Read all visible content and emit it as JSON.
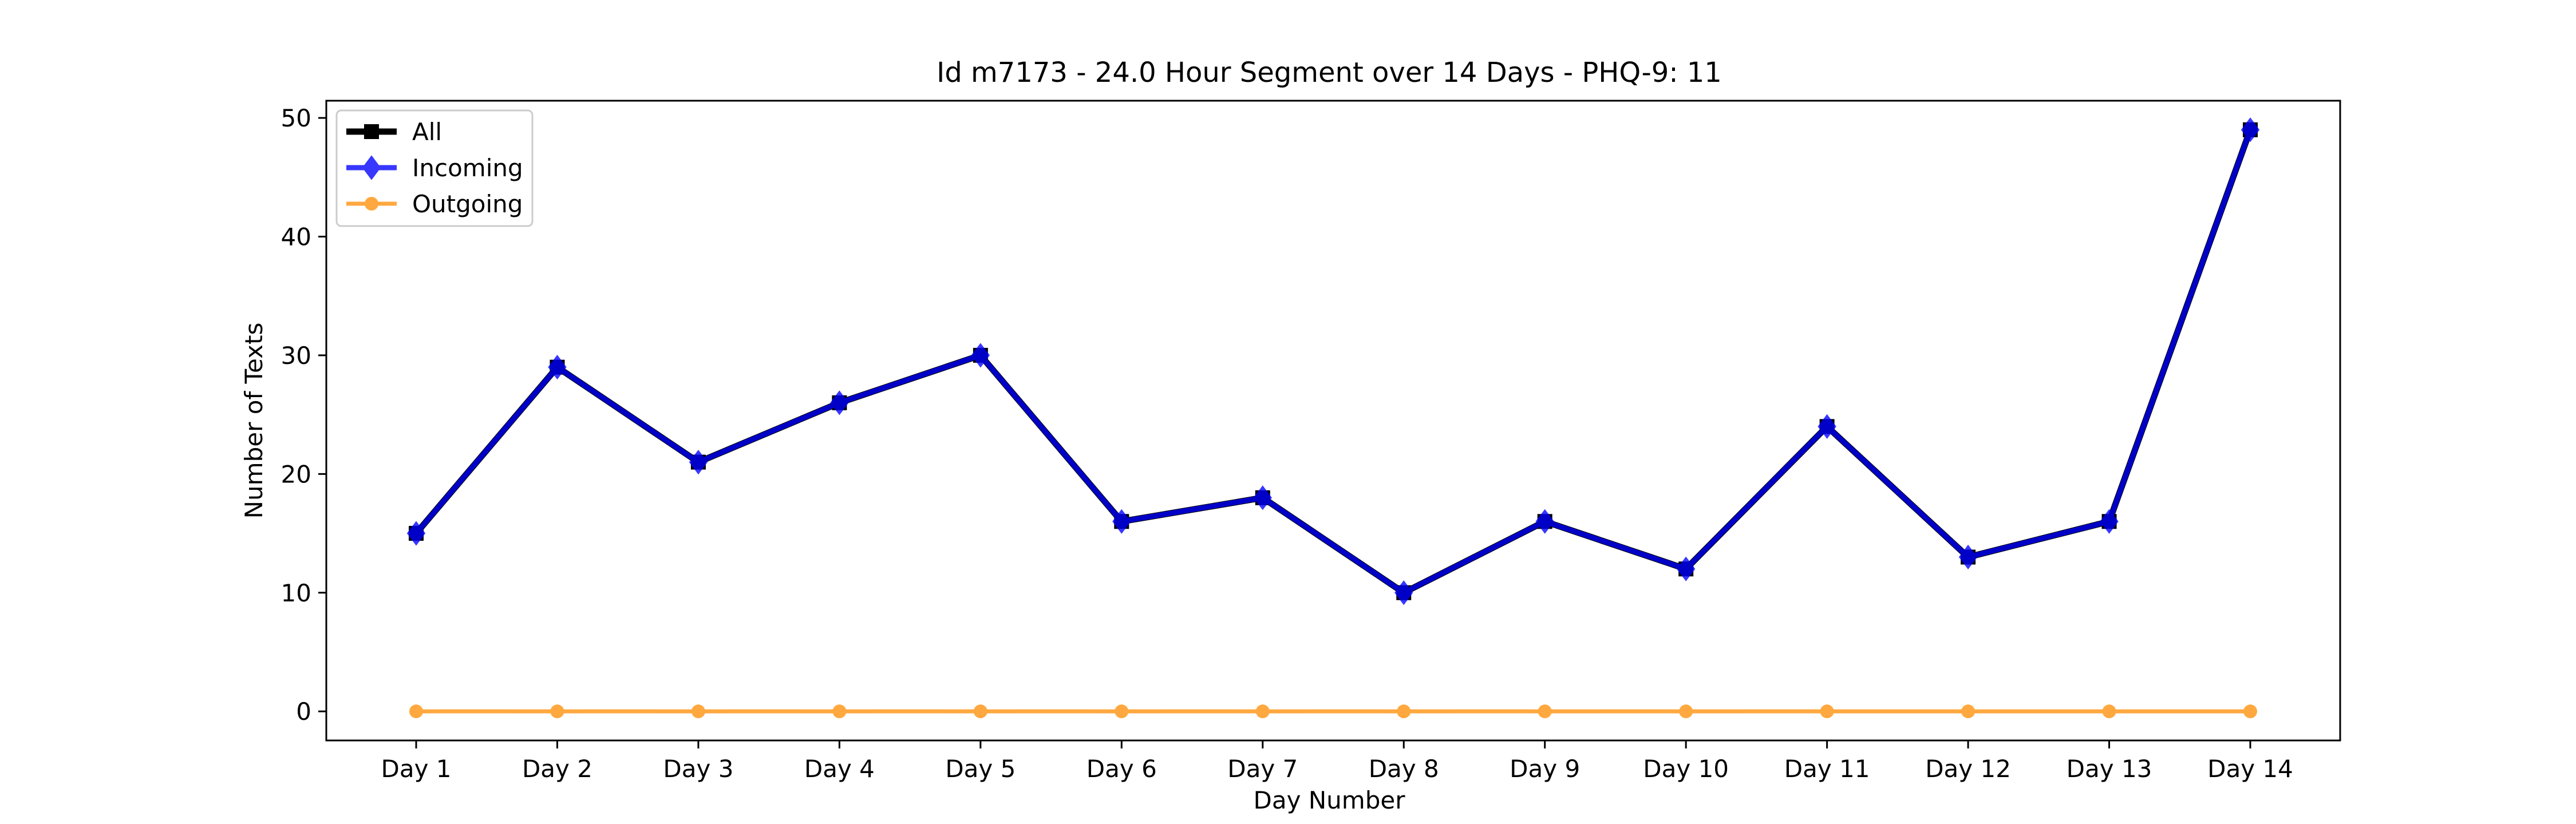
{
  "chart_data": {
    "type": "line",
    "title": "Id m7173 - 24.0 Hour Segment over 14 Days - PHQ-9: 11",
    "xlabel": "Day Number",
    "ylabel": "Number of Texts",
    "categories": [
      "Day 1",
      "Day 2",
      "Day 3",
      "Day 4",
      "Day 5",
      "Day 6",
      "Day 7",
      "Day 8",
      "Day 9",
      "Day 10",
      "Day 11",
      "Day 12",
      "Day 13",
      "Day 14"
    ],
    "ylim": [
      -2.45,
      51.45
    ],
    "yticks": [
      0,
      10,
      20,
      30,
      40,
      50
    ],
    "grid": false,
    "legend_position": "top-left",
    "series": [
      {
        "name": "All",
        "color": "#000000",
        "marker": "square",
        "values": [
          15,
          29,
          21,
          26,
          30,
          16,
          18,
          10,
          16,
          12,
          24,
          13,
          16,
          49
        ]
      },
      {
        "name": "Incoming",
        "color": "#0000ff",
        "marker": "diamond",
        "values": [
          15,
          29,
          21,
          26,
          30,
          16,
          18,
          10,
          16,
          12,
          24,
          13,
          16,
          49
        ]
      },
      {
        "name": "Outgoing",
        "color": "#ff8c00",
        "marker": "circle",
        "values": [
          0,
          0,
          0,
          0,
          0,
          0,
          0,
          0,
          0,
          0,
          0,
          0,
          0,
          0
        ]
      }
    ]
  }
}
